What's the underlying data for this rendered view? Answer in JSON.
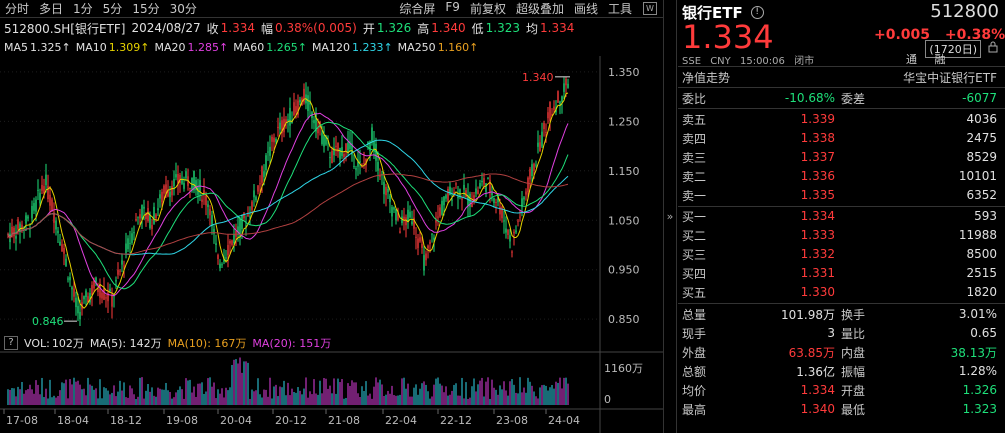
{
  "toolbar": {
    "tabs": [
      "分时",
      "多日",
      "1分",
      "5分",
      "15分",
      "30分"
    ],
    "right": [
      "综合屏",
      "F9",
      "前复权",
      "超级叠加",
      "画线",
      "工具"
    ],
    "icon": "wp-icon"
  },
  "header": {
    "code_name": "512800.SH[银行ETF]",
    "date": "2024/08/27",
    "close_label": "收",
    "close": "1.334",
    "amp_label": "幅",
    "amp": "0.38%(0.005)",
    "open_label": "开",
    "open": "1.326",
    "high_label": "高",
    "high": "1.340",
    "low_label": "低",
    "low": "1.323",
    "avg_label": "均",
    "avg": "1.334"
  },
  "ma": {
    "ma5_label": "MA5",
    "ma5": "1.325↑",
    "ma10_label": "MA10",
    "ma10": "1.309↑",
    "ma20_label": "MA20",
    "ma20": "1.285↑",
    "ma60_label": "MA60",
    "ma60": "1.265↑",
    "ma120_label": "MA120",
    "ma120": "1.233↑",
    "ma250_label": "MA250",
    "ma250": "1.160↑",
    "days": "(1720日)"
  },
  "volume": {
    "q": "?",
    "vol_label": "VOL:",
    "vol": "102万",
    "ma5": "MA(5): 142万",
    "ma10": "MA(10): 167万",
    "ma20": "MA(20): 151万",
    "axis_top": "1160万",
    "axis_zero": "0"
  },
  "chart_data": {
    "type": "candlestick",
    "y_ticks": [
      "1.350",
      "1.250",
      "1.150",
      "1.050",
      "0.950",
      "0.850"
    ],
    "x_ticks": [
      "17-08",
      "18-04",
      "18-12",
      "19-08",
      "20-04",
      "20-12",
      "21-08",
      "22-04",
      "22-12",
      "23-08",
      "24-04"
    ],
    "high_marker": "1.340",
    "low_marker": "0.846",
    "ylim": [
      0.82,
      1.37
    ],
    "colors": {
      "up": "#ff3b3b",
      "down": "#1ee07a",
      "ma5": "#e0e0e0",
      "ma10": "#e6d200",
      "ma20": "#e040e0",
      "ma60": "#1ee07a",
      "ma120": "#2fd5e6",
      "ma250": "#e8a020"
    }
  },
  "panel": {
    "title": "银行ETF",
    "code": "512800",
    "price": "1.334",
    "change": "+0.005",
    "change_pct": "+0.38%",
    "sub": [
      "SSE",
      "CNY",
      "15:00:06",
      "闭市"
    ],
    "tong": [
      "通",
      "融"
    ],
    "nav_label": "净值走势",
    "index_name": "华宝中证银行ETF",
    "weibi_label": "委比",
    "weibi": "-10.68%",
    "weicha_label": "委差",
    "weicha": "-6077",
    "sells": [
      {
        "label": "卖五",
        "price": "1.339",
        "vol": "4036"
      },
      {
        "label": "卖四",
        "price": "1.338",
        "vol": "2475"
      },
      {
        "label": "卖三",
        "price": "1.337",
        "vol": "8529"
      },
      {
        "label": "卖二",
        "price": "1.336",
        "vol": "10101"
      },
      {
        "label": "卖一",
        "price": "1.335",
        "vol": "6352"
      }
    ],
    "buys": [
      {
        "label": "买一",
        "price": "1.334",
        "vol": "593"
      },
      {
        "label": "买二",
        "price": "1.333",
        "vol": "11988"
      },
      {
        "label": "买三",
        "price": "1.332",
        "vol": "8500"
      },
      {
        "label": "买四",
        "price": "1.331",
        "vol": "2515"
      },
      {
        "label": "买五",
        "price": "1.330",
        "vol": "1820"
      }
    ],
    "stats": [
      {
        "l1": "总量",
        "v1": "101.98万",
        "c1": "w",
        "l2": "换手",
        "v2": "3.01%",
        "c2": "w"
      },
      {
        "l1": "现手",
        "v1": "3",
        "c1": "w",
        "l2": "量比",
        "v2": "0.65",
        "c2": "w"
      },
      {
        "l1": "外盘",
        "v1": "63.85万",
        "c1": "r",
        "l2": "内盘",
        "v2": "38.13万",
        "c2": "g"
      },
      {
        "l1": "总额",
        "v1": "1.36亿",
        "c1": "w",
        "l2": "振幅",
        "v2": "1.28%",
        "c2": "w"
      },
      {
        "l1": "均价",
        "v1": "1.334",
        "c1": "r",
        "l2": "开盘",
        "v2": "1.326",
        "c2": "g"
      },
      {
        "l1": "最高",
        "v1": "1.340",
        "c1": "r",
        "l2": "最低",
        "v2": "1.323",
        "c2": "g"
      }
    ]
  }
}
